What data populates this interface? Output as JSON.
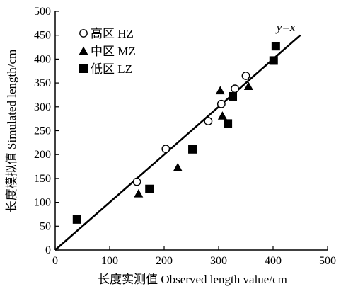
{
  "chart_data": {
    "type": "scatter",
    "title": "",
    "xlabel": "长度实测值 Observed length value/cm",
    "ylabel": "长度模拟值 Simulated length/cm",
    "xlim": [
      0,
      500
    ],
    "ylim": [
      0,
      500
    ],
    "xticks": [
      0,
      100,
      200,
      300,
      400,
      500
    ],
    "yticks": [
      0,
      50,
      100,
      150,
      200,
      250,
      300,
      350,
      400,
      450,
      500
    ],
    "grid": false,
    "legend_position": "top-left",
    "series": [
      {
        "name": "高区 HZ",
        "marker": "open-circle",
        "points": [
          {
            "x": 150,
            "y": 143
          },
          {
            "x": 203,
            "y": 212
          },
          {
            "x": 281,
            "y": 270
          },
          {
            "x": 305,
            "y": 306
          },
          {
            "x": 330,
            "y": 338
          },
          {
            "x": 350,
            "y": 365
          }
        ]
      },
      {
        "name": "中区 MZ",
        "marker": "filled-triangle",
        "points": [
          {
            "x": 153,
            "y": 118
          },
          {
            "x": 225,
            "y": 173
          },
          {
            "x": 303,
            "y": 334
          },
          {
            "x": 307,
            "y": 281
          },
          {
            "x": 355,
            "y": 343
          }
        ]
      },
      {
        "name": "低区 LZ",
        "marker": "filled-square",
        "points": [
          {
            "x": 40,
            "y": 64
          },
          {
            "x": 173,
            "y": 128
          },
          {
            "x": 252,
            "y": 211
          },
          {
            "x": 317,
            "y": 265
          },
          {
            "x": 326,
            "y": 322
          },
          {
            "x": 401,
            "y": 397
          },
          {
            "x": 405,
            "y": 427
          }
        ]
      }
    ],
    "reference_line": {
      "label": "y=x",
      "from": [
        0,
        0
      ],
      "to": [
        450,
        450
      ]
    }
  },
  "colors": {
    "ink": "#000000",
    "background": "#ffffff"
  }
}
